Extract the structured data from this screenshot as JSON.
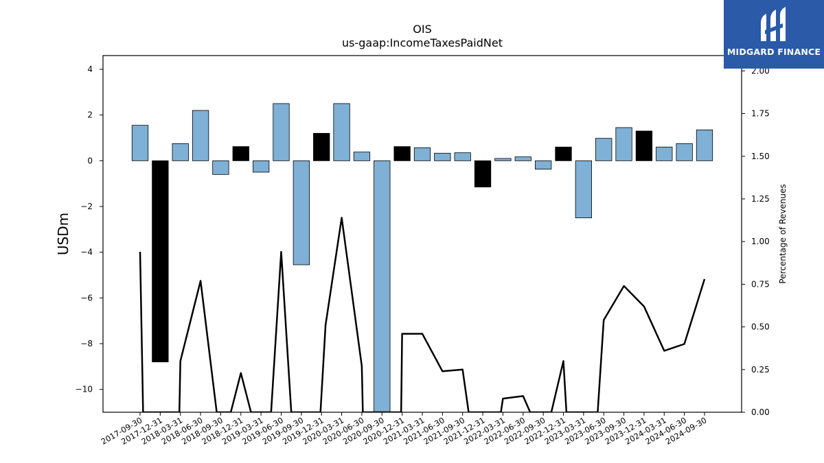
{
  "chart_data": {
    "type": "bar",
    "title": "OIS",
    "subtitle": "us-gaap:IncomeTaxesPaidNet",
    "ylabel": "USDm",
    "y2label": "Percentage of Revenues",
    "ylim": [
      -11,
      4.6
    ],
    "y2lim": [
      0,
      2.09
    ],
    "yticks": [
      4,
      2,
      0,
      -2,
      -4,
      -6,
      -8,
      -10
    ],
    "y2ticks": [
      2.0,
      1.75,
      1.5,
      1.25,
      1.0,
      0.75,
      0.5,
      0.25,
      0.0
    ],
    "categories": [
      "2017-09-30",
      "2017-12-31",
      "2018-03-31",
      "2018-06-30",
      "2018-09-30",
      "2018-12-31",
      "2019-03-31",
      "2019-06-30",
      "2019-09-30",
      "2019-12-31",
      "2020-03-31",
      "2020-06-30",
      "2020-09-30",
      "2020-12-31",
      "2021-03-31",
      "2021-06-30",
      "2021-09-30",
      "2021-12-31",
      "2022-03-31",
      "2022-06-30",
      "2022-09-30",
      "2022-12-31",
      "2023-03-31",
      "2023-06-30",
      "2023-09-30",
      "2023-12-31",
      "2024-03-31",
      "2024-06-30",
      "2024-09-30"
    ],
    "series": [
      {
        "type": "bar",
        "values": [
          1.55,
          -8.8,
          0.75,
          2.2,
          -0.6,
          0.62,
          -0.5,
          2.5,
          -4.55,
          1.2,
          2.5,
          0.38,
          -11.5,
          0.62,
          0.57,
          0.33,
          0.35,
          -1.15,
          0.1,
          0.17,
          -0.37,
          0.6,
          -2.5,
          0.98,
          1.45,
          1.3,
          0.6,
          0.75,
          1.35
        ],
        "colors": [
          "#7fb0d5",
          "#000000",
          "#7fb0d5",
          "#7fb0d5",
          "#7fb0d5",
          "#000000",
          "#7fb0d5",
          "#7fb0d5",
          "#7fb0d5",
          "#000000",
          "#7fb0d5",
          "#7fb0d5",
          "#7fb0d5",
          "#000000",
          "#7fb0d5",
          "#7fb0d5",
          "#7fb0d5",
          "#000000",
          "#7fb0d5",
          "#7fb0d5",
          "#7fb0d5",
          "#000000",
          "#7fb0d5",
          "#7fb0d5",
          "#7fb0d5",
          "#000000",
          "#7fb0d5",
          "#7fb0d5",
          "#7fb0d5"
        ]
      },
      {
        "type": "line",
        "axis": "right",
        "points": [
          [
            0,
            0.94
          ],
          [
            0.15,
            0.0
          ],
          [
            1.95,
            0.0
          ],
          [
            2,
            0.3
          ],
          [
            3,
            0.77
          ],
          [
            3.8,
            0.0
          ],
          [
            4.5,
            0.0
          ],
          [
            5,
            0.23
          ],
          [
            5.5,
            0.0
          ],
          [
            6.5,
            0.0
          ],
          [
            7,
            0.94
          ],
          [
            7.5,
            0.0
          ],
          [
            8.95,
            0.0
          ],
          [
            9.2,
            0.51
          ],
          [
            10,
            1.14
          ],
          [
            11,
            0.27
          ],
          [
            11.05,
            0.0
          ],
          [
            12.95,
            0.0
          ],
          [
            13,
            0.46
          ],
          [
            14,
            0.46
          ],
          [
            15,
            0.24
          ],
          [
            16,
            0.25
          ],
          [
            16.3,
            0.0
          ],
          [
            17.9,
            0.0
          ],
          [
            18,
            0.08
          ],
          [
            19,
            0.095
          ],
          [
            19.35,
            0.0
          ],
          [
            20.4,
            0.0
          ],
          [
            21,
            0.3
          ],
          [
            21.15,
            0.0
          ],
          [
            22.7,
            0.0
          ],
          [
            23,
            0.54
          ],
          [
            24,
            0.74
          ],
          [
            25,
            0.62
          ],
          [
            26,
            0.36
          ],
          [
            27,
            0.4
          ],
          [
            28,
            0.78
          ]
        ],
        "color": "#000000"
      }
    ],
    "grid": false,
    "legend": "none"
  },
  "logo": {
    "text": "MIDGARD FINANCE",
    "bg_color": "#2a5aa8"
  }
}
